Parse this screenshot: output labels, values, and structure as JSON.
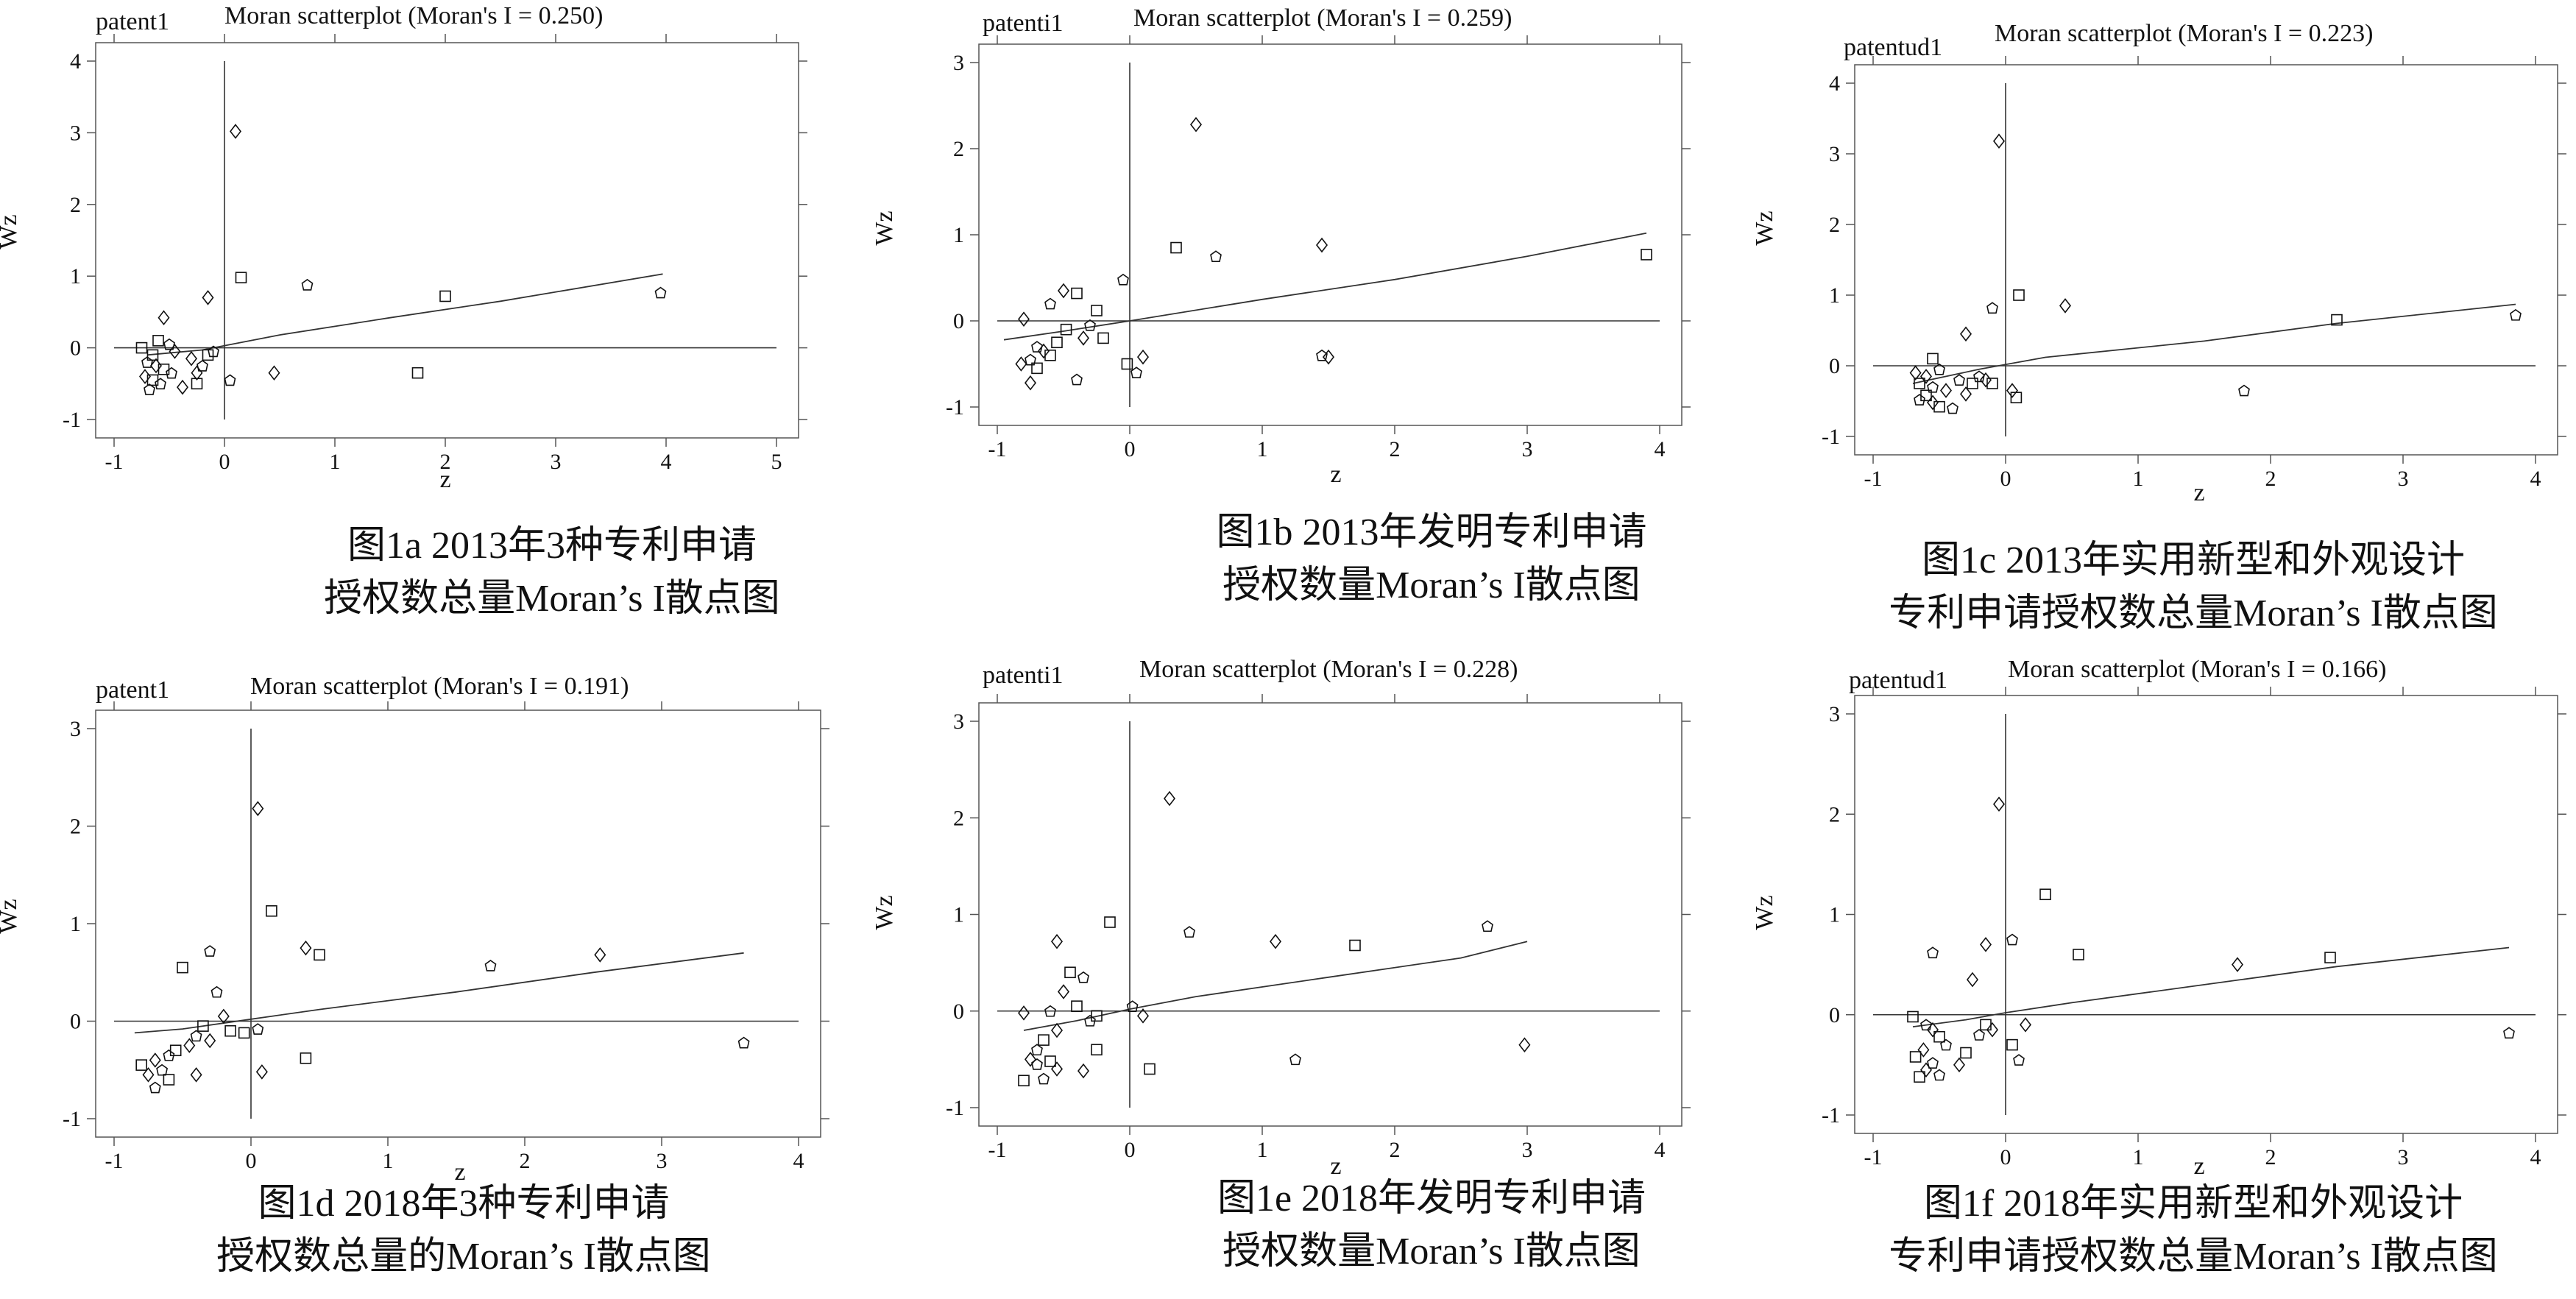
{
  "chart_data": [
    {
      "type": "scatter",
      "var_label": "patent1",
      "title": "Moran scatterplot (Moran's I = 0.250)",
      "xlabel": "z",
      "ylabel": "Wz",
      "xlim": [
        -1,
        5
      ],
      "ylim": [
        -1,
        4
      ],
      "xticks": [
        -1,
        0,
        1,
        2,
        3,
        4,
        5
      ],
      "yticks": [
        -1,
        0,
        1,
        2,
        3,
        4
      ],
      "fit_line": [
        [
          -0.7,
          -0.1
        ],
        [
          -0.2,
          -0.03
        ],
        [
          0.5,
          0.18
        ],
        [
          1.5,
          0.42
        ],
        [
          2.5,
          0.65
        ],
        [
          3.97,
          1.03
        ]
      ],
      "points": [
        [
          0.1,
          3.02
        ],
        [
          0.15,
          0.98
        ],
        [
          0.75,
          0.88
        ],
        [
          -0.15,
          0.7
        ],
        [
          2.0,
          0.72
        ],
        [
          3.95,
          0.77
        ],
        [
          -0.55,
          0.42
        ],
        [
          -0.6,
          0.1
        ],
        [
          -0.5,
          0.05
        ],
        [
          -0.45,
          -0.05
        ],
        [
          -0.65,
          -0.1
        ],
        [
          -0.7,
          -0.2
        ],
        [
          -0.62,
          -0.25
        ],
        [
          -0.55,
          -0.3
        ],
        [
          -0.48,
          -0.35
        ],
        [
          -0.72,
          -0.4
        ],
        [
          -0.65,
          -0.45
        ],
        [
          -0.58,
          -0.5
        ],
        [
          -0.38,
          -0.55
        ],
        [
          -0.25,
          -0.5
        ],
        [
          -0.2,
          -0.25
        ],
        [
          -0.3,
          -0.15
        ],
        [
          -0.15,
          -0.1
        ],
        [
          -0.1,
          -0.05
        ],
        [
          -0.25,
          -0.35
        ],
        [
          -0.75,
          0.0
        ],
        [
          0.05,
          -0.45
        ],
        [
          0.45,
          -0.35
        ],
        [
          1.75,
          -0.35
        ],
        [
          -0.68,
          -0.58
        ]
      ]
    },
    {
      "type": "scatter",
      "var_label": "patenti1",
      "title": "Moran scatterplot (Moran's I = 0.259)",
      "xlabel": "z",
      "ylabel": "Wz",
      "xlim": [
        -1,
        4
      ],
      "ylim": [
        -1,
        3
      ],
      "xticks": [
        -1,
        0,
        1,
        2,
        3,
        4
      ],
      "yticks": [
        -1,
        0,
        1,
        2,
        3
      ],
      "fit_line": [
        [
          -0.95,
          -0.22
        ],
        [
          -0.5,
          -0.12
        ],
        [
          0.0,
          0.0
        ],
        [
          1.0,
          0.25
        ],
        [
          2.0,
          0.48
        ],
        [
          3.0,
          0.75
        ],
        [
          3.9,
          1.02
        ]
      ],
      "points": [
        [
          0.5,
          2.28
        ],
        [
          0.35,
          0.85
        ],
        [
          0.65,
          0.75
        ],
        [
          1.45,
          0.88
        ],
        [
          3.9,
          0.77
        ],
        [
          -0.05,
          0.48
        ],
        [
          -0.5,
          0.35
        ],
        [
          -0.4,
          0.32
        ],
        [
          -0.6,
          0.2
        ],
        [
          -0.8,
          0.02
        ],
        [
          -0.25,
          0.12
        ],
        [
          -0.3,
          -0.05
        ],
        [
          -0.35,
          -0.2
        ],
        [
          -0.55,
          -0.25
        ],
        [
          -0.7,
          -0.3
        ],
        [
          -0.65,
          -0.35
        ],
        [
          -0.6,
          -0.4
        ],
        [
          -0.75,
          -0.45
        ],
        [
          -0.82,
          -0.5
        ],
        [
          -0.7,
          -0.55
        ],
        [
          -0.4,
          -0.68
        ],
        [
          -0.75,
          -0.72
        ],
        [
          -0.2,
          -0.2
        ],
        [
          0.05,
          -0.6
        ],
        [
          0.1,
          -0.42
        ],
        [
          -0.02,
          -0.5
        ],
        [
          1.45,
          -0.4
        ],
        [
          1.5,
          -0.42
        ],
        [
          -0.48,
          -0.1
        ]
      ]
    },
    {
      "type": "scatter",
      "var_label": "patentud1",
      "title": "Moran scatterplot (Moran's I = 0.223)",
      "xlabel": "z",
      "ylabel": "Wz",
      "xlim": [
        -1,
        4
      ],
      "ylim": [
        -1,
        4
      ],
      "xticks": [
        -1,
        0,
        1,
        2,
        3,
        4
      ],
      "yticks": [
        -1,
        0,
        1,
        2,
        3,
        4
      ],
      "fit_line": [
        [
          -0.7,
          -0.25
        ],
        [
          -0.2,
          -0.05
        ],
        [
          0.3,
          0.12
        ],
        [
          1.5,
          0.35
        ],
        [
          2.5,
          0.6
        ],
        [
          3.85,
          0.87
        ]
      ],
      "points": [
        [
          -0.05,
          3.18
        ],
        [
          0.1,
          1.0
        ],
        [
          -0.1,
          0.82
        ],
        [
          0.45,
          0.85
        ],
        [
          2.5,
          0.65
        ],
        [
          3.85,
          0.72
        ],
        [
          -0.3,
          0.45
        ],
        [
          -0.55,
          0.1
        ],
        [
          -0.5,
          -0.05
        ],
        [
          -0.6,
          -0.15
        ],
        [
          -0.65,
          -0.25
        ],
        [
          -0.55,
          -0.3
        ],
        [
          -0.45,
          -0.35
        ],
        [
          -0.6,
          -0.42
        ],
        [
          -0.65,
          -0.48
        ],
        [
          -0.55,
          -0.52
        ],
        [
          -0.5,
          -0.58
        ],
        [
          -0.4,
          -0.6
        ],
        [
          -0.3,
          -0.4
        ],
        [
          -0.25,
          -0.25
        ],
        [
          -0.2,
          -0.15
        ],
        [
          -0.15,
          -0.2
        ],
        [
          -0.1,
          -0.25
        ],
        [
          -0.35,
          -0.2
        ],
        [
          0.05,
          -0.35
        ],
        [
          0.08,
          -0.45
        ],
        [
          1.8,
          -0.35
        ],
        [
          -0.68,
          -0.1
        ]
      ]
    },
    {
      "type": "scatter",
      "var_label": "patent1",
      "title": "Moran scatterplot (Moran's I = 0.191)",
      "xlabel": "z",
      "ylabel": "Wz",
      "xlim": [
        -1,
        4
      ],
      "ylim": [
        -1,
        3
      ],
      "xticks": [
        -1,
        0,
        1,
        2,
        3,
        4
      ],
      "yticks": [
        -1,
        0,
        1,
        2,
        3
      ],
      "fit_line": [
        [
          -0.85,
          -0.12
        ],
        [
          -0.5,
          -0.08
        ],
        [
          0.0,
          0.02
        ],
        [
          0.5,
          0.12
        ],
        [
          1.5,
          0.3
        ],
        [
          2.5,
          0.5
        ],
        [
          3.6,
          0.7
        ]
      ],
      "points": [
        [
          0.05,
          2.18
        ],
        [
          0.15,
          1.13
        ],
        [
          -0.3,
          0.72
        ],
        [
          0.4,
          0.75
        ],
        [
          0.5,
          0.68
        ],
        [
          1.75,
          0.57
        ],
        [
          2.55,
          0.68
        ],
        [
          -0.5,
          0.55
        ],
        [
          -0.25,
          0.3
        ],
        [
          -0.2,
          0.05
        ],
        [
          -0.35,
          -0.05
        ],
        [
          -0.4,
          -0.15
        ],
        [
          -0.45,
          -0.25
        ],
        [
          -0.55,
          -0.3
        ],
        [
          -0.6,
          -0.35
        ],
        [
          -0.7,
          -0.4
        ],
        [
          -0.8,
          -0.45
        ],
        [
          -0.65,
          -0.5
        ],
        [
          -0.75,
          -0.55
        ],
        [
          -0.6,
          -0.6
        ],
        [
          -0.7,
          -0.68
        ],
        [
          -0.4,
          -0.55
        ],
        [
          -0.05,
          -0.12
        ],
        [
          0.05,
          -0.08
        ],
        [
          0.08,
          -0.52
        ],
        [
          0.4,
          -0.38
        ],
        [
          3.6,
          -0.22
        ],
        [
          -0.3,
          -0.2
        ],
        [
          -0.15,
          -0.1
        ]
      ]
    },
    {
      "type": "scatter",
      "var_label": "patenti1",
      "title": "Moran scatterplot (Moran's I = 0.228)",
      "xlabel": "z",
      "ylabel": "Wz",
      "xlim": [
        -1,
        4
      ],
      "ylim": [
        -1,
        3
      ],
      "xticks": [
        -1,
        0,
        1,
        2,
        3,
        4
      ],
      "yticks": [
        -1,
        0,
        1,
        2,
        3
      ],
      "fit_line": [
        [
          -0.8,
          -0.2
        ],
        [
          -0.4,
          -0.1
        ],
        [
          0.0,
          0.02
        ],
        [
          0.5,
          0.15
        ],
        [
          1.5,
          0.35
        ],
        [
          2.5,
          0.55
        ],
        [
          3.0,
          0.72
        ]
      ],
      "points": [
        [
          0.3,
          2.2
        ],
        [
          -0.15,
          0.92
        ],
        [
          0.45,
          0.82
        ],
        [
          1.1,
          0.72
        ],
        [
          1.7,
          0.68
        ],
        [
          2.7,
          0.88
        ],
        [
          -0.55,
          0.72
        ],
        [
          -0.45,
          0.4
        ],
        [
          -0.35,
          0.35
        ],
        [
          -0.5,
          0.2
        ],
        [
          -0.4,
          0.05
        ],
        [
          -0.6,
          0.0
        ],
        [
          -0.8,
          -0.02
        ],
        [
          -0.25,
          -0.05
        ],
        [
          -0.3,
          -0.1
        ],
        [
          -0.55,
          -0.2
        ],
        [
          -0.65,
          -0.3
        ],
        [
          -0.7,
          -0.4
        ],
        [
          -0.75,
          -0.5
        ],
        [
          -0.6,
          -0.52
        ],
        [
          -0.7,
          -0.55
        ],
        [
          -0.55,
          -0.6
        ],
        [
          -0.8,
          -0.72
        ],
        [
          -0.65,
          -0.7
        ],
        [
          -0.35,
          -0.62
        ],
        [
          -0.25,
          -0.4
        ],
        [
          0.02,
          0.05
        ],
        [
          0.1,
          -0.05
        ],
        [
          0.15,
          -0.6
        ],
        [
          1.25,
          -0.5
        ],
        [
          2.98,
          -0.35
        ]
      ]
    },
    {
      "type": "scatter",
      "var_label": "patentud1",
      "title": "Moran scatterplot (Moran's I = 0.166)",
      "xlabel": "z",
      "ylabel": "Wz",
      "xlim": [
        -1,
        4
      ],
      "ylim": [
        -1,
        3
      ],
      "xticks": [
        -1,
        0,
        1,
        2,
        3,
        4
      ],
      "yticks": [
        -1,
        0,
        1,
        2,
        3
      ],
      "fit_line": [
        [
          -0.7,
          -0.12
        ],
        [
          -0.3,
          -0.05
        ],
        [
          0.0,
          0.02
        ],
        [
          0.5,
          0.12
        ],
        [
          1.5,
          0.3
        ],
        [
          2.5,
          0.48
        ],
        [
          3.8,
          0.67
        ]
      ],
      "points": [
        [
          -0.05,
          2.1
        ],
        [
          0.3,
          1.2
        ],
        [
          0.05,
          0.75
        ],
        [
          -0.15,
          0.7
        ],
        [
          0.55,
          0.6
        ],
        [
          -0.55,
          0.62
        ],
        [
          1.75,
          0.5
        ],
        [
          2.45,
          0.57
        ],
        [
          3.8,
          -0.18
        ],
        [
          -0.25,
          0.35
        ],
        [
          -0.7,
          -0.02
        ],
        [
          -0.6,
          -0.1
        ],
        [
          -0.55,
          -0.15
        ],
        [
          -0.5,
          -0.22
        ],
        [
          -0.45,
          -0.3
        ],
        [
          -0.62,
          -0.35
        ],
        [
          -0.68,
          -0.42
        ],
        [
          -0.55,
          -0.48
        ],
        [
          -0.6,
          -0.55
        ],
        [
          -0.65,
          -0.62
        ],
        [
          -0.5,
          -0.6
        ],
        [
          -0.35,
          -0.5
        ],
        [
          -0.3,
          -0.38
        ],
        [
          -0.2,
          -0.2
        ],
        [
          -0.1,
          -0.15
        ],
        [
          0.05,
          -0.3
        ],
        [
          0.1,
          -0.45
        ],
        [
          0.15,
          -0.1
        ],
        [
          -0.15,
          -0.1
        ]
      ]
    }
  ],
  "captions": [
    [
      "图1a  2013年3种专利申请",
      "授权数总量Moran’s I散点图"
    ],
    [
      "图1b  2013年发明专利申请",
      "授权数量Moran’s I散点图"
    ],
    [
      "图1c  2013年实用新型和外观设计",
      "专利申请授权数总量Moran’s I散点图"
    ],
    [
      "图1d  2018年3种专利申请",
      "授权数总量的Moran’s I散点图"
    ],
    [
      "图1e  2018年发明专利申请",
      "授权数量Moran’s I散点图"
    ],
    [
      "图1f  2018年实用新型和外观设计",
      "专利申请授权数总量Moran’s I散点图"
    ]
  ],
  "colors": {
    "ink": "#111111",
    "frame": "#555555",
    "line": "#333333"
  }
}
